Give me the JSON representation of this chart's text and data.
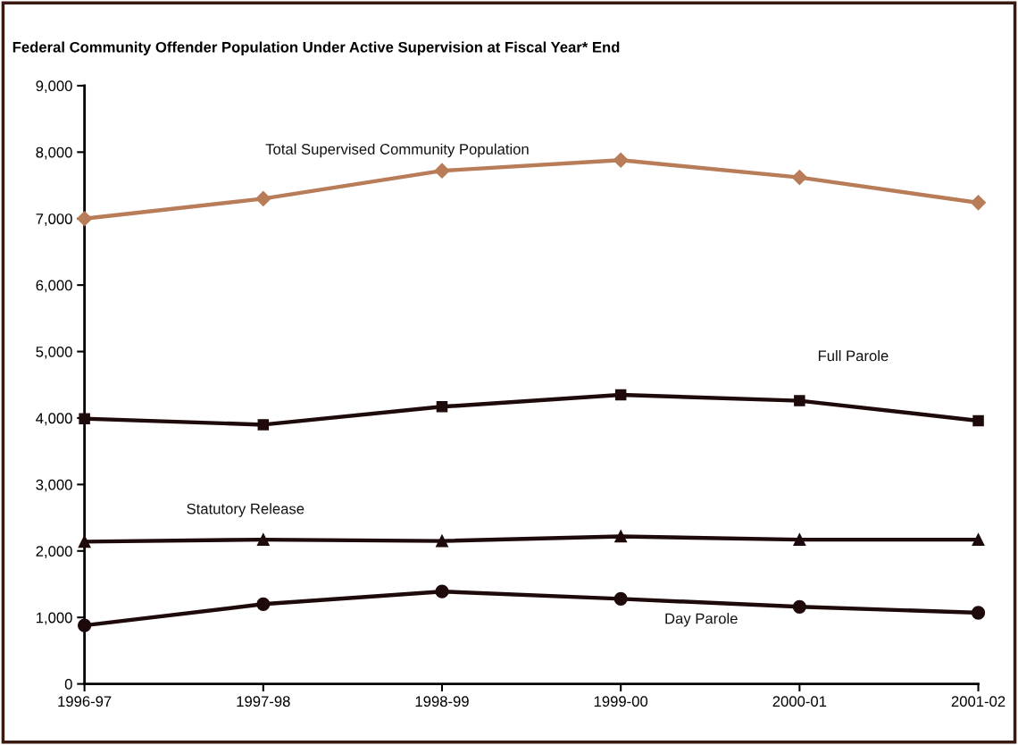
{
  "chart_data": {
    "type": "line",
    "title": "Federal Community Offender Population Under Active Supervision at Fiscal Year* End",
    "categories": [
      "1996-97",
      "1997-98",
      "1998-99",
      "1999-00",
      "2000-01",
      "2001-02"
    ],
    "series": [
      {
        "name": "Total Supervised Community Population",
        "color": "#b87c58",
        "marker": "diamond",
        "values": [
          7000,
          7300,
          7720,
          7880,
          7620,
          7240
        ]
      },
      {
        "name": "Full Parole",
        "color": "#1e0a0a",
        "marker": "square",
        "values": [
          3990,
          3900,
          4170,
          4350,
          4260,
          3960
        ]
      },
      {
        "name": "Statutory Release",
        "color": "#1e0a0a",
        "marker": "triangle",
        "values": [
          2140,
          2170,
          2150,
          2220,
          2170,
          2170
        ]
      },
      {
        "name": "Day Parole",
        "color": "#1e0a0a",
        "marker": "circle",
        "values": [
          880,
          1200,
          1390,
          1280,
          1160,
          1070
        ]
      }
    ],
    "ylim": [
      0,
      9000
    ],
    "yticks": [
      {
        "value": 0,
        "label": "0"
      },
      {
        "value": 1000,
        "label": "1,000"
      },
      {
        "value": 2000,
        "label": "2,000"
      },
      {
        "value": 3000,
        "label": "3,000"
      },
      {
        "value": 4000,
        "label": "4,000"
      },
      {
        "value": 5000,
        "label": "5,000"
      },
      {
        "value": 6000,
        "label": "6,000"
      },
      {
        "value": 7000,
        "label": "7,000"
      },
      {
        "value": 8000,
        "label": "8,000"
      },
      {
        "value": 9000,
        "label": "9,000"
      }
    ],
    "grid": false,
    "legend": false,
    "line_style": "solid"
  }
}
